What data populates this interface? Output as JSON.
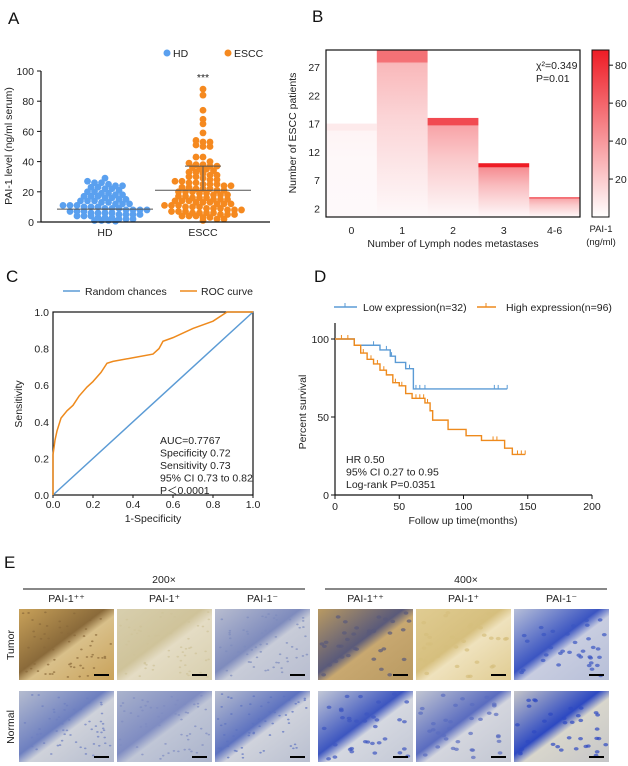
{
  "panels": {
    "A": "A",
    "B": "B",
    "C": "C",
    "D": "D",
    "E": "E"
  },
  "colors": {
    "hd": "#5aa0ef",
    "escc": "#f5891f",
    "heat": "#ee1c25",
    "random": "#5b9bd5",
    "roc": "#ee8a1d",
    "low": "#5b9bd5",
    "high": "#ee8a1d"
  },
  "chart_data": [
    {
      "panel": "A",
      "type": "scatter",
      "ylabel": "PAI-1 level (ng/ml serum)",
      "ylim": [
        0,
        100
      ],
      "yticks": [
        "0",
        "20",
        "40",
        "60",
        "80",
        "100"
      ],
      "categories": [
        "HD",
        "ESCC"
      ],
      "significance": "***",
      "series": [
        {
          "name": "HD",
          "mean": 8.5,
          "sd_upper": 8.5,
          "values": [
            29,
            27,
            26,
            26,
            25,
            24,
            24,
            23,
            23,
            22,
            22,
            21,
            20,
            20,
            19,
            19,
            18,
            18,
            17,
            17,
            17,
            16,
            16,
            15,
            15,
            14,
            14,
            14,
            13,
            13,
            12,
            12,
            12,
            11,
            11,
            11,
            10,
            10,
            10,
            9,
            9,
            9,
            8,
            8,
            8,
            8,
            7,
            7,
            7,
            6,
            6,
            6,
            6,
            5,
            5,
            5,
            5,
            4,
            4,
            4,
            3,
            3,
            3,
            2,
            2,
            2,
            1,
            1,
            1,
            0.5
          ]
        },
        {
          "name": "ESCC",
          "mean": 21,
          "sd_upper": 37,
          "values": [
            88,
            84,
            74,
            68,
            65,
            59,
            54,
            53,
            53,
            51,
            50,
            50,
            43,
            43,
            40,
            39,
            38,
            38,
            37,
            37,
            36,
            35,
            35,
            34,
            33,
            33,
            32,
            31,
            31,
            30,
            30,
            29,
            28,
            28,
            27,
            27,
            26,
            26,
            25,
            25,
            25,
            24,
            24,
            23,
            23,
            22,
            22,
            22,
            21,
            21,
            20,
            20,
            20,
            19,
            19,
            18,
            18,
            18,
            17,
            17,
            16,
            16,
            16,
            15,
            15,
            15,
            14,
            14,
            14,
            13,
            13,
            13,
            12,
            12,
            12,
            11,
            11,
            11,
            10,
            10,
            10,
            9,
            9,
            9,
            8,
            8,
            8,
            7,
            7,
            7,
            6,
            6,
            6,
            6,
            5,
            5,
            5,
            4,
            4,
            4,
            3,
            3,
            2,
            2,
            1
          ]
        }
      ]
    },
    {
      "panel": "B",
      "type": "heatmap",
      "xlabel": "Number of Lymph nodes metastases",
      "ylabel": "Number of ESCC patients",
      "categories": [
        "0",
        "1",
        "2",
        "3",
        "4-6"
      ],
      "patients": [
        17,
        30,
        18,
        10,
        4
      ],
      "pai1_max": [
        8,
        55,
        70,
        88,
        68
      ],
      "ylim": [
        0.5,
        30
      ],
      "yticks": [
        "2",
        "7",
        "12",
        "17",
        "22",
        "27"
      ],
      "annotation": [
        "χ²=0.349",
        "P=0.01"
      ],
      "colorbar": {
        "title": "PAI-1",
        "unit": "(ng/ml)",
        "range": [
          0,
          88
        ],
        "ticks": [
          "20",
          "40",
          "60",
          "80"
        ]
      }
    },
    {
      "panel": "C",
      "type": "line",
      "xlabel": "1-Specificity",
      "ylabel": "Sensitivity",
      "xlim": [
        0,
        1
      ],
      "ylim": [
        0,
        1
      ],
      "ticks": [
        "0.0",
        "0.2",
        "0.4",
        "0.6",
        "0.8",
        "1.0"
      ],
      "legend": "top",
      "series": [
        {
          "name": "Random chances",
          "x": [
            0,
            1
          ],
          "y": [
            0,
            1
          ]
        },
        {
          "name": "ROC curve",
          "x": [
            0,
            0,
            0.01,
            0.02,
            0.04,
            0.07,
            0.1,
            0.13,
            0.17,
            0.2,
            0.24,
            0.27,
            0.3,
            0.4,
            0.5,
            0.53,
            0.55,
            0.6,
            0.7,
            0.8,
            0.87,
            1
          ],
          "y": [
            0,
            0.22,
            0.3,
            0.35,
            0.42,
            0.46,
            0.49,
            0.54,
            0.59,
            0.62,
            0.67,
            0.72,
            0.73,
            0.75,
            0.77,
            0.8,
            0.84,
            0.86,
            0.91,
            0.95,
            1,
            1
          ]
        }
      ],
      "annotation": [
        "AUC=0.7767",
        "Specificity 0.72",
        "Sensitivity 0.73",
        "95% CI 0.73 to 0.82",
        "P＜0.0001"
      ]
    },
    {
      "panel": "D",
      "type": "line",
      "xlabel": "Follow up time(months)",
      "ylabel": "Percent survival",
      "xlim": [
        0,
        200
      ],
      "ylim": [
        0,
        110
      ],
      "xticks": [
        "0",
        "50",
        "100",
        "150",
        "200"
      ],
      "yticks": [
        "0",
        "50",
        "100"
      ],
      "legend": "top",
      "series": [
        {
          "name": "Low expression(n=32)",
          "x": [
            0,
            15,
            35,
            43,
            47,
            55,
            61,
            134
          ],
          "y": [
            100,
            96,
            93,
            89,
            85,
            81,
            68,
            68
          ],
          "censored": [
            30,
            40,
            44,
            58,
            63,
            66,
            70,
            124,
            127,
            134
          ]
        },
        {
          "name": "High expression(n=96)",
          "x": [
            0,
            15,
            20,
            25,
            30,
            35,
            40,
            45,
            50,
            55,
            60,
            70,
            74,
            76,
            88,
            102,
            114,
            132,
            138,
            148
          ],
          "y": [
            100,
            96,
            91,
            87,
            84,
            80,
            77,
            72,
            70,
            65,
            62,
            59,
            54,
            48,
            42,
            38,
            35,
            30,
            26,
            26
          ],
          "censored": [
            5,
            10,
            22,
            28,
            33,
            38,
            47,
            52,
            63,
            66,
            69,
            72,
            102,
            123,
            126,
            142,
            145,
            148
          ]
        }
      ],
      "annotation": [
        "HR 0.50",
        "95% CI 0.27 to 0.95",
        "Log-rank P=0.0351"
      ]
    }
  ],
  "panel_e": {
    "groups": [
      "200×",
      "400×"
    ],
    "columns": [
      "PAI-1⁺⁺",
      "PAI-1⁺",
      "PAI-1⁻",
      "PAI-1⁺⁺",
      "PAI-1⁺",
      "PAI-1⁻"
    ],
    "rows": [
      "Tumor",
      "Normal"
    ],
    "scale_bar": "100μm"
  }
}
